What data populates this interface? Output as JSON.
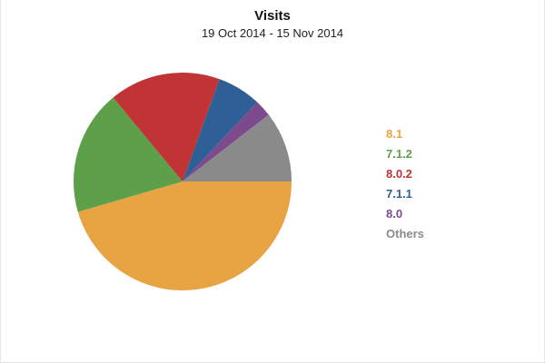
{
  "chart_data": {
    "type": "pie",
    "title": "Visits",
    "subtitle": "19 Oct 2014 - 15 Nov 2014",
    "legend_position": "right",
    "start_angle_deg": 90,
    "direction": "clockwise",
    "slices": [
      {
        "label": "8.1",
        "value": 45.5,
        "color": "#E8A343"
      },
      {
        "label": "7.1.2",
        "value": 18.5,
        "color": "#5E9F4A"
      },
      {
        "label": "8.0.2",
        "value": 16.5,
        "color": "#C03436"
      },
      {
        "label": "7.1.1",
        "value": 6.5,
        "color": "#2E5F97"
      },
      {
        "label": "8.0",
        "value": 2.5,
        "color": "#7E4A8E"
      },
      {
        "label": "Others",
        "value": 10.5,
        "color": "#8A8A8A"
      }
    ]
  }
}
